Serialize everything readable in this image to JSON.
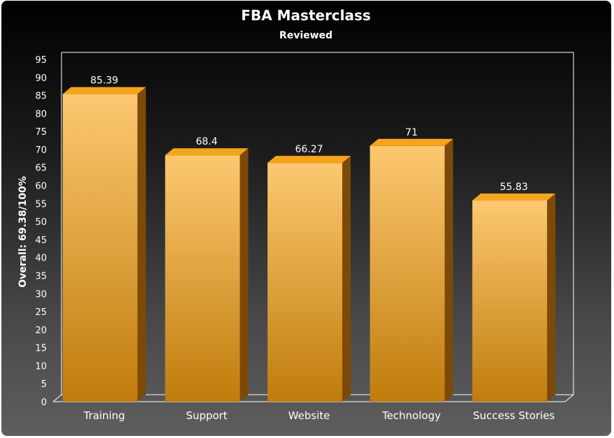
{
  "chart_data": {
    "type": "bar",
    "title": "FBA Masterclass",
    "subtitle": "Reviewed",
    "ylabel": "Overall: 69.38/100%",
    "xlabel": "",
    "categories": [
      "Training",
      "Support",
      "Website",
      "Technology",
      "Success Stories"
    ],
    "values": [
      85.39,
      68.4,
      66.27,
      71,
      55.83
    ],
    "value_labels": [
      "85.39",
      "68.4",
      "66.27",
      "71",
      "55.83"
    ],
    "ylim": [
      0,
      95
    ],
    "yticks": [
      "0",
      "5",
      "10",
      "15",
      "20",
      "25",
      "30",
      "35",
      "40",
      "45",
      "50",
      "55",
      "60",
      "65",
      "70",
      "75",
      "80",
      "85",
      "90",
      "95"
    ],
    "grid": false,
    "legend": "none",
    "style": "3d",
    "colors": {
      "bar_top": "#fdc870",
      "bar_bottom": "#c07c0c",
      "bar_side": "#7c4a06",
      "bar_cap": "#f5a51c",
      "background_top": "#000000",
      "background_bottom": "#5e5e5e",
      "axis": "#ffffff",
      "text": "#ffffff"
    }
  }
}
